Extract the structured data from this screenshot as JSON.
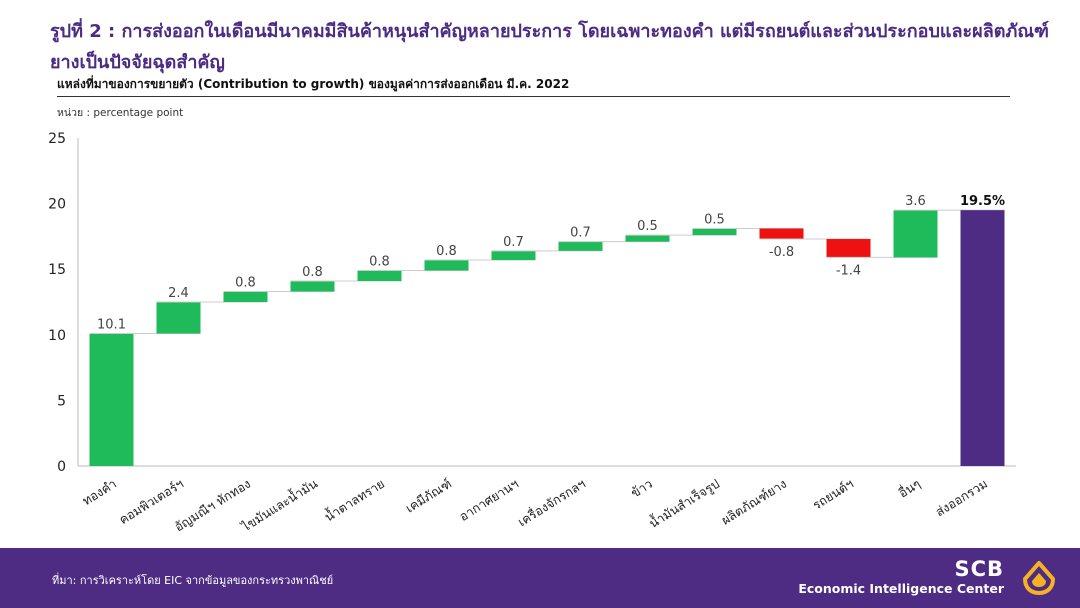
{
  "header": {
    "title": "รูปที่ 2 : การส่งออกในเดือนมีนาคมมีสินค้าหนุนสำคัญหลายประการ โดยเฉพาะทองคำ แต่มีรถยนต์และส่วนประกอบและผลิตภัณฑ์ยางเป็นปัจจัยฉุดสำคัญ",
    "subtitle": "แหล่งที่มาของการขยายตัว (Contribution to growth) ของมูลค่าการส่งออกเดือน มี.ค. 2022",
    "unit": "หน่วย : percentage  point"
  },
  "chart_data": {
    "type": "waterfall",
    "categories": [
      "ทองคำ",
      "คอมพิวเตอร์ฯ",
      "อัญมณีฯ หักทอง",
      "ไขมันและน้ำมัน",
      "น้ำตาลทราย",
      "เคมีภัณฑ์",
      "อากาศยานฯ",
      "เครื่องจักรกลฯ",
      "ข้าว",
      "น้ำมันสำเร็จรูป",
      "ผลิตภัณฑ์ยาง",
      "รถยนต์ฯ",
      "อื่นๆ",
      "ส่งออกรวม"
    ],
    "values": [
      10.1,
      2.4,
      0.8,
      0.8,
      0.8,
      0.8,
      0.7,
      0.7,
      0.5,
      0.5,
      -0.8,
      -1.4,
      3.6,
      19.5
    ],
    "value_labels": [
      "10.1",
      "2.4",
      "0.8",
      "0.8",
      "0.8",
      "0.8",
      "0.7",
      "0.7",
      "0.5",
      "0.5",
      "-0.8",
      "-1.4",
      "3.6",
      "19.5%"
    ],
    "total_index": 13,
    "ylim": [
      0,
      25
    ],
    "yticks": [
      0,
      5,
      10,
      15,
      20,
      25
    ],
    "grid": false,
    "colors": {
      "positive": "#1fba5a",
      "negative": "#ee1111",
      "total": "#4f2c84"
    }
  },
  "footer": {
    "source": "ที่มา: การวิเคราะห์โดย EIC จากข้อมูลของกระทรวงพาณิชย์",
    "brand": "SCB",
    "brand_sub": "Economic Intelligence Center",
    "logo_icon": "scb-logo-icon",
    "logo_color": "#f5b324"
  }
}
